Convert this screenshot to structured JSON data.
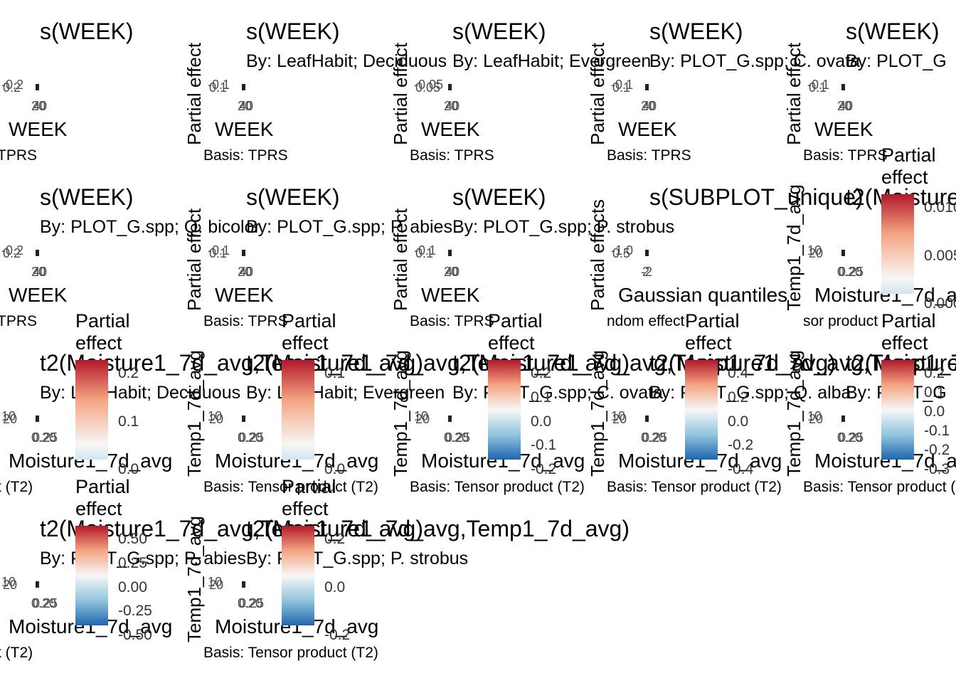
{
  "colors": {
    "high": "#B2182B",
    "mid": "#F7F7F7",
    "low": "#2166AC"
  },
  "chart_data": [
    {
      "type": "line",
      "title": "s(WEEK)",
      "subtitle": "",
      "xlabel": "WEEK",
      "ylabel": "",
      "caption": "TPRS",
      "yticks": [
        "-0.2",
        "0.2"
      ],
      "xticks": [
        "20",
        "40"
      ]
    },
    {
      "type": "line",
      "title": "s(WEEK)",
      "subtitle": "By: LeafHabit; Deciduous",
      "xlabel": "WEEK",
      "ylabel": "Partial effect",
      "caption": "Basis: TPRS",
      "yticks": [
        "-0.1",
        "0.1"
      ],
      "xticks": [
        "20",
        "40"
      ]
    },
    {
      "type": "line",
      "title": "s(WEEK)",
      "subtitle": "By: LeafHabit; Evergreen",
      "xlabel": "WEEK",
      "ylabel": "Partial effect",
      "caption": "Basis: TPRS",
      "yticks": [
        "-0.05",
        "0.05"
      ],
      "xticks": [
        "20",
        "40"
      ]
    },
    {
      "type": "line",
      "title": "s(WEEK)",
      "subtitle": "By: PLOT_G.spp; C. ovata",
      "xlabel": "WEEK",
      "ylabel": "Partial effect",
      "caption": "Basis: TPRS",
      "yticks": [
        "-0.1",
        "0.1"
      ],
      "xticks": [
        "20",
        "40"
      ]
    },
    {
      "type": "line",
      "title": "s(WEEK)",
      "subtitle": "By: PLOT_G",
      "xlabel": "WEEK",
      "ylabel": "Partial effect",
      "caption": "Basis: TPRS",
      "yticks": [
        "-0.1",
        "0.1"
      ],
      "xticks": [
        "20",
        "40"
      ]
    },
    {
      "type": "line",
      "title": "s(WEEK)",
      "subtitle": "By: PLOT_G.spp; Q. bicolor",
      "xlabel": "WEEK",
      "ylabel": "",
      "caption": "TPRS",
      "yticks": [
        "-0.2",
        "0.2"
      ],
      "xticks": [
        "20",
        "40"
      ]
    },
    {
      "type": "line",
      "title": "s(WEEK)",
      "subtitle": "By: PLOT_G.spp; P. abies",
      "xlabel": "WEEK",
      "ylabel": "Partial effect",
      "caption": "Basis: TPRS",
      "yticks": [
        "-0.1",
        "0.1"
      ],
      "xticks": [
        "20",
        "40"
      ]
    },
    {
      "type": "line",
      "title": "s(WEEK)",
      "subtitle": "By: PLOT_G.spp; P. strobus",
      "xlabel": "WEEK",
      "ylabel": "Partial effect",
      "caption": "Basis: TPRS",
      "yticks": [
        "-0.1",
        "0.1"
      ],
      "xticks": [
        "20",
        "40"
      ]
    },
    {
      "type": "scatter",
      "title": "s(SUBPLOT_unique)",
      "subtitle": "",
      "xlabel": "Gaussian quantiles",
      "ylabel": "Partial effects",
      "caption": "ndom effect",
      "yticks": [
        "-1.0",
        "0.5"
      ],
      "xticks": [
        "-2",
        "2"
      ]
    },
    {
      "type": "heatmap",
      "title": "t2(Moisture1_7d_avg,Temp1_7d_avg)",
      "subtitle": "",
      "xlabel": "Moisture1_7d_avg",
      "ylabel": "Temp1_7d_avg",
      "caption": "sor product",
      "yticks": [
        "10",
        "20"
      ],
      "xticks": [
        "0.20",
        "0.25"
      ],
      "legend_title": "Partial effect",
      "legend_ticks": [
        "0.010",
        "0.005",
        "0.000"
      ]
    },
    {
      "type": "heatmap",
      "title": "t2(Moisture1_7d_avg,Temp1_7d_avg)",
      "subtitle": "By: LeafHabit; Deciduous",
      "xlabel": "Moisture1_7d_avg",
      "ylabel": "",
      "caption": "t (T2)",
      "yticks": [
        "10",
        "20"
      ],
      "xticks": [
        "0.20",
        "0.25"
      ],
      "legend_title": "Partial effect",
      "legend_ticks": [
        "0.2",
        "0.1",
        "0.0"
      ]
    },
    {
      "type": "heatmap",
      "title": "t2(Moisture1_7d_avg,Temp1_7d_avg)",
      "subtitle": "By: LeafHabit; Evergreen",
      "xlabel": "Moisture1_7d_avg",
      "ylabel": "Temp1_7d_avg",
      "caption": "Basis: Tensor product (T2)",
      "yticks": [
        "10",
        "20"
      ],
      "xticks": [
        "0.20",
        "0.25"
      ],
      "legend_title": "Partial effect",
      "legend_ticks": [
        "0.1",
        "0.0"
      ]
    },
    {
      "type": "heatmap",
      "title": "t2(Moisture1_7d_avg,Temp1_7d_avg)",
      "subtitle": "By: PLOT_G.spp; C. ovata",
      "xlabel": "Moisture1_7d_avg",
      "ylabel": "Temp1_7d_avg",
      "caption": "Basis: Tensor product (T2)",
      "yticks": [
        "10",
        "20"
      ],
      "xticks": [
        "0.20",
        "0.25"
      ],
      "legend_title": "Partial effect",
      "legend_ticks": [
        "0.2",
        "0.1",
        "0.0",
        "-0.1",
        "-0.2"
      ]
    },
    {
      "type": "heatmap",
      "title": "t2(Moisture1_7d_avg,Temp1_7d_avg)",
      "subtitle": "By: PLOT_G.spp; Q. alba",
      "xlabel": "Moisture1_7d_avg",
      "ylabel": "Temp1_7d_avg",
      "caption": "Basis: Tensor product (T2)",
      "yticks": [
        "10",
        "20"
      ],
      "xticks": [
        "0.20",
        "0.25"
      ],
      "legend_title": "Partial effect",
      "legend_ticks": [
        "0.4",
        "0.2",
        "0.0",
        "-0.2",
        "-0.4"
      ]
    },
    {
      "type": "heatmap",
      "title": "t2(Moisture1_7d_avg,Temp1_7d_avg)",
      "subtitle": "By: PLOT_G",
      "xlabel": "Moisture1_7d_avg",
      "ylabel": "Temp1_7d_avg",
      "caption": "Basis: Tensor product (T2)",
      "yticks": [
        "10",
        "20"
      ],
      "xticks": [
        "0.20",
        "0.25"
      ],
      "legend_title": "Partial effect",
      "legend_ticks": [
        "0.2",
        "0.1",
        "0.0",
        "-0.1",
        "-0.2",
        "-0.3"
      ]
    },
    {
      "type": "heatmap",
      "title": "t2(Moisture1_7d_avg,Temp1_7d_avg)",
      "subtitle": "By: PLOT_G.spp; P. abies",
      "xlabel": "Moisture1_7d_avg",
      "ylabel": "",
      "caption": "t (T2)",
      "yticks": [
        "10",
        "20"
      ],
      "xticks": [
        "0.20",
        "0.25"
      ],
      "legend_title": "Partial effect",
      "legend_ticks": [
        "0.50",
        "0.25",
        "0.00",
        "-0.25",
        "-0.50"
      ]
    },
    {
      "type": "heatmap",
      "title": "t2(Moisture1_7d_avg,Temp1_7d_avg)",
      "subtitle": "By: PLOT_G.spp; P. strobus",
      "xlabel": "Moisture1_7d_avg",
      "ylabel": "Temp1_7d_avg",
      "caption": "Basis: Tensor product (T2)",
      "yticks": [
        "10",
        "20"
      ],
      "xticks": [
        "0.20",
        "0.25"
      ],
      "legend_title": "Partial effect",
      "legend_ticks": [
        "0.2",
        "0.0",
        "-0.2"
      ]
    }
  ]
}
